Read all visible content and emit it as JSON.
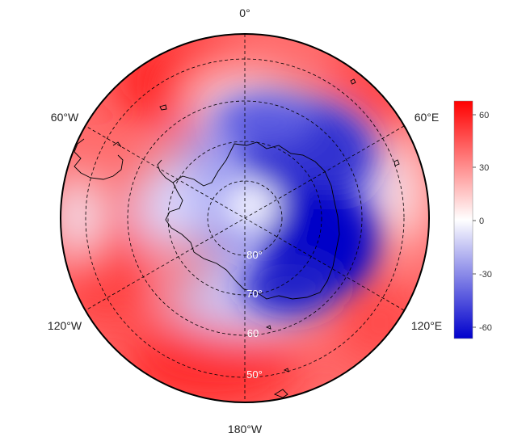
{
  "map": {
    "projection": "polar stereographic (south pole)",
    "lon_labels": {
      "top": "0°",
      "top_right": "60°E",
      "bottom_right": "120°E",
      "bottom": "180°W",
      "bottom_left": "120°W",
      "top_left": "60°W"
    },
    "lat_labels": [
      "80°",
      "70°",
      "60",
      "50°"
    ],
    "gridline_style": "dashed",
    "colors": {
      "positive": "#ff0000",
      "neutral": "#ffffff",
      "negative": "#0000cc",
      "coast": "#000000"
    }
  },
  "colorbar": {
    "ticks": [
      "60",
      "30",
      "0",
      "-30",
      "-60"
    ],
    "min": -66,
    "max": 66
  }
}
